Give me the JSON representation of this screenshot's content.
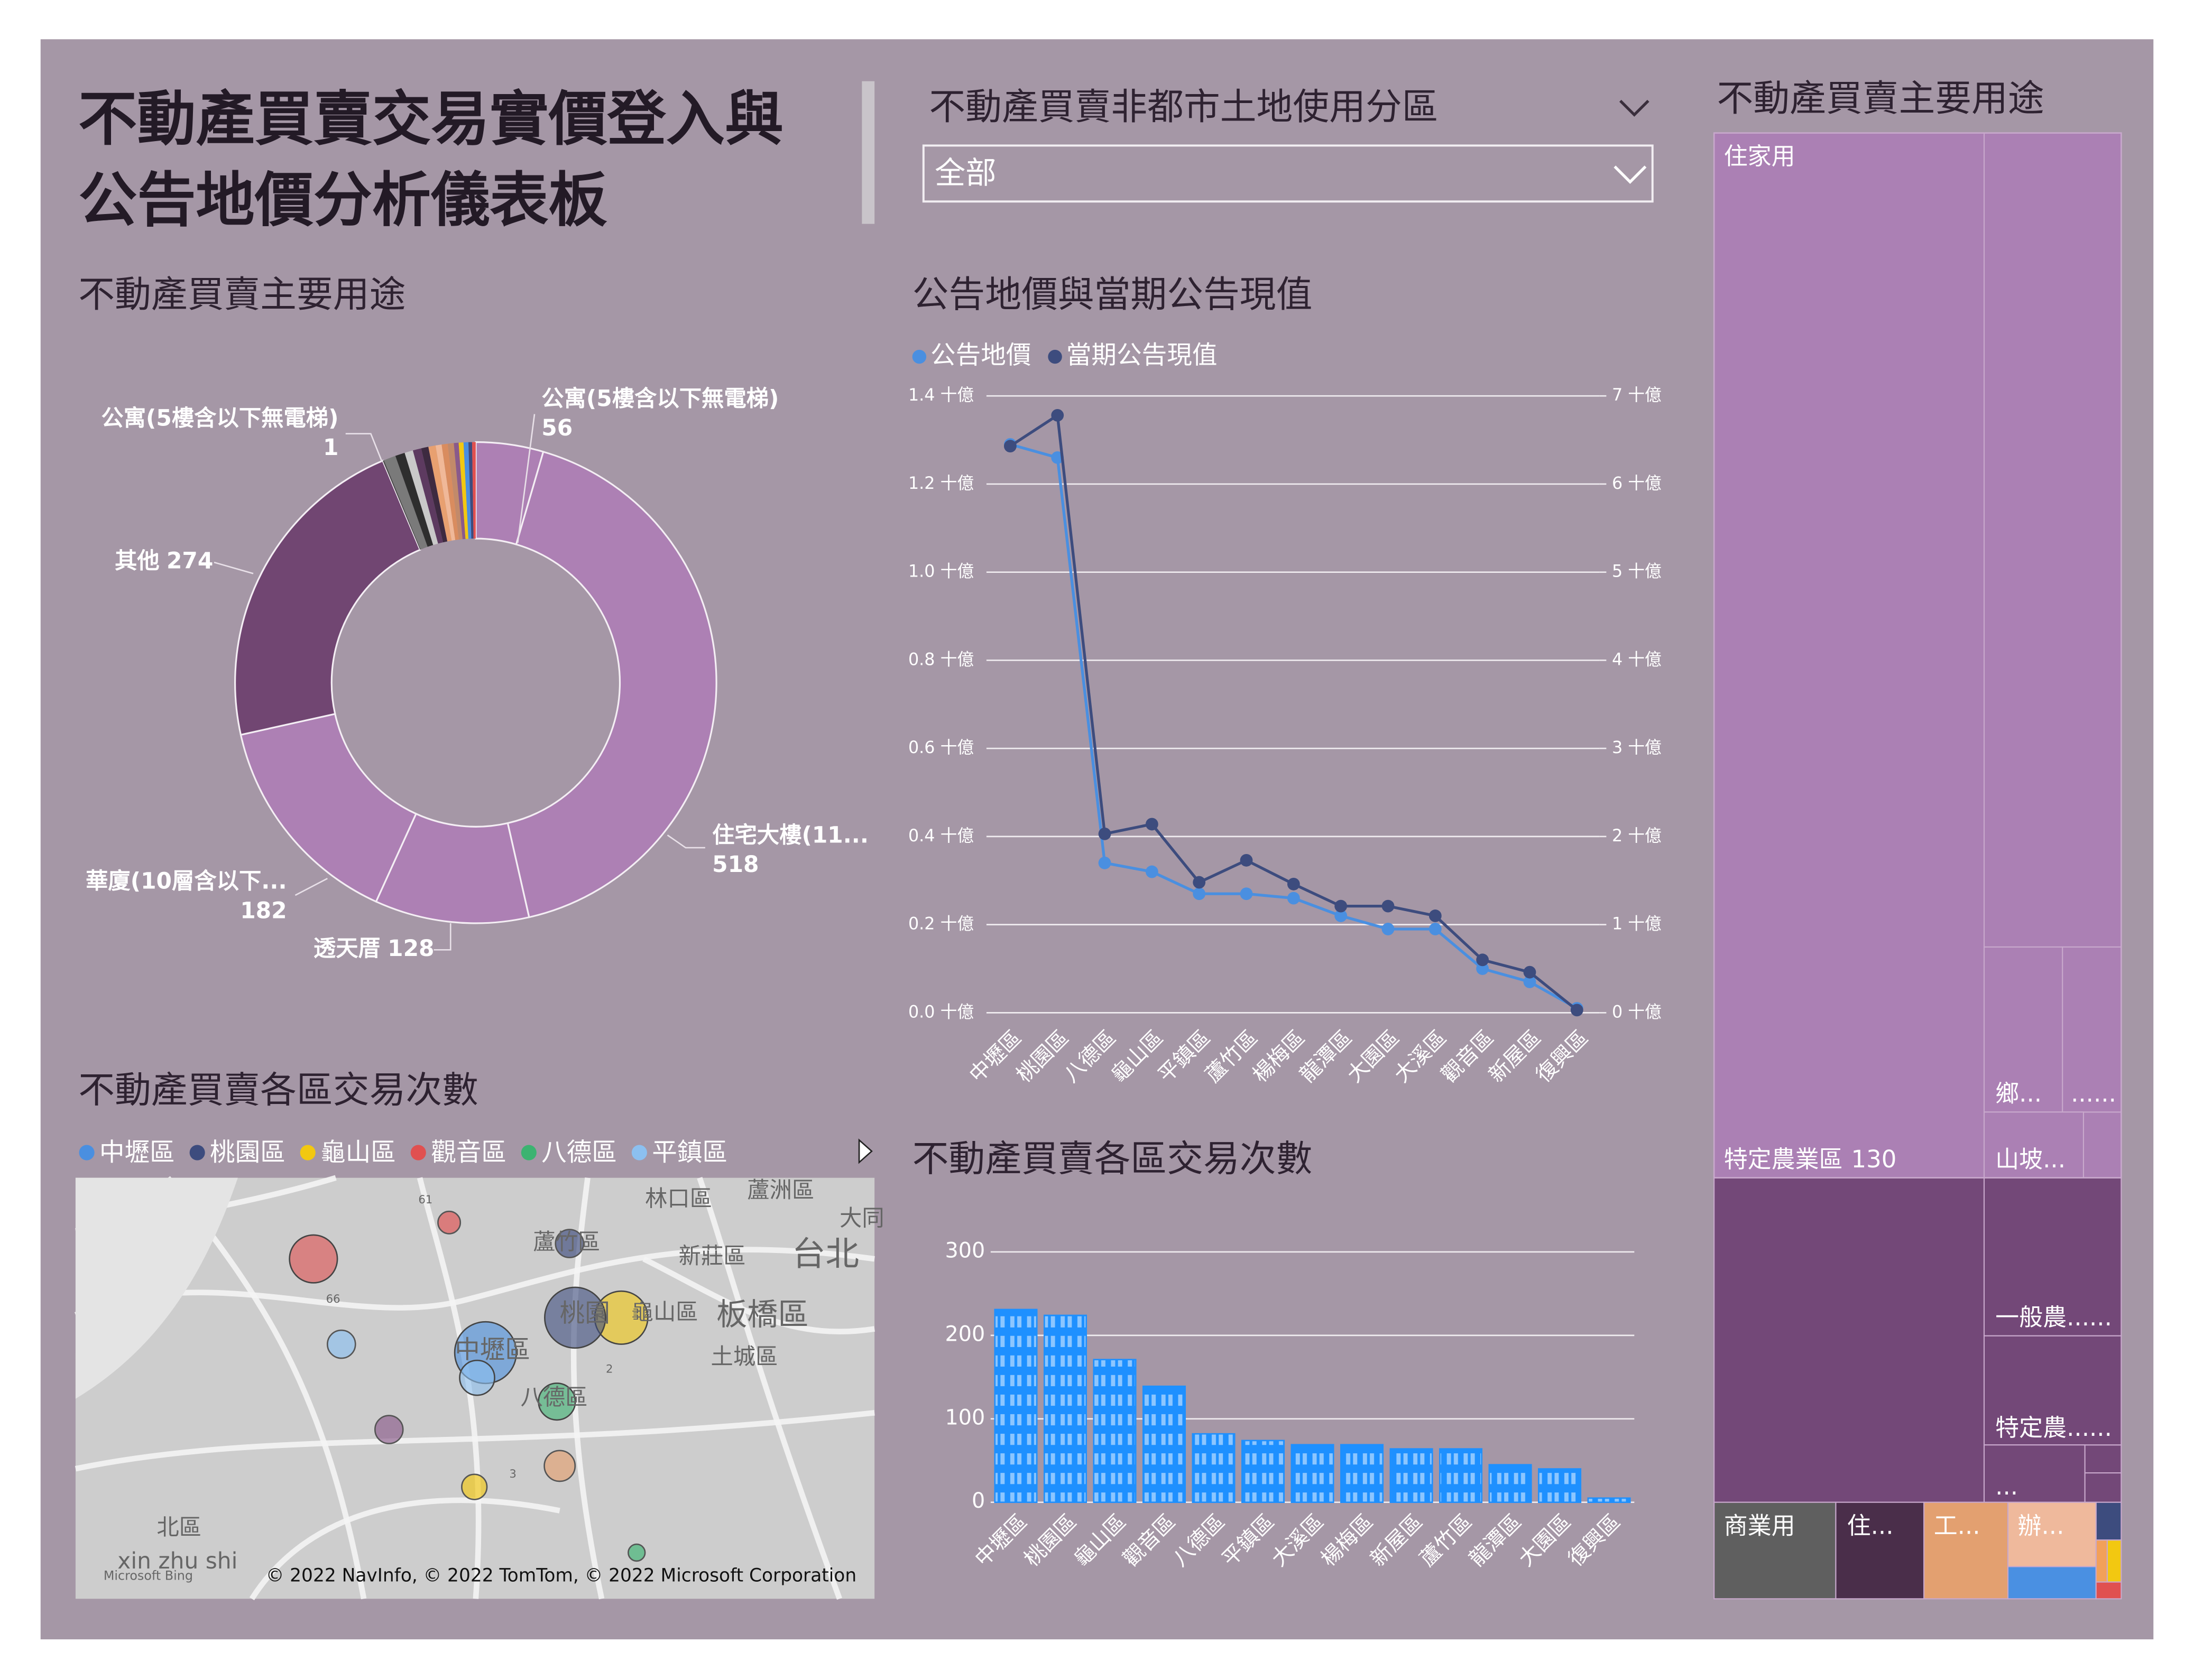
{
  "header": {
    "title_lines": [
      "不動產買賣交易實價登入與",
      "公告地價分析儀表板"
    ]
  },
  "filter": {
    "label": "不動產買賣非都市土地使用分區",
    "value": "全部"
  },
  "chart_data": [
    {
      "type": "donut",
      "title": "不動產買賣主要用途",
      "categories": [
        "公寓(5樓含以下無電梯)",
        "住宅大樓(11...",
        "透天厝",
        "華廈(10層含以下...",
        "其他",
        "公寓(5樓含以下無電梯)",
        null,
        null,
        null,
        null,
        null,
        null,
        null,
        null,
        null,
        null,
        null,
        null,
        null,
        null
      ],
      "values": [
        56,
        518,
        128,
        182,
        274,
        1,
        10,
        8,
        7,
        7,
        6,
        6,
        5,
        5,
        5,
        4,
        4,
        4,
        3,
        3
      ],
      "colors": [
        "#ad80b4",
        "#ad80b4",
        "#ad80b4",
        "#ad80b4",
        "#714672",
        "#4a4a4a",
        "#7a7a7a",
        "#2e2e2e",
        "#c9c9c9",
        "#5d3a60",
        "#3d2a40",
        "#e8a070",
        "#f0b898",
        "#d98c5f",
        "#c28a6a",
        "#8a5a8a",
        "#f2c811",
        "#4a8fe0",
        "#3d4c7e",
        "#e05050"
      ]
    },
    {
      "type": "line",
      "title": "公告地價與當期公告現值",
      "categories": [
        "中壢區",
        "桃園區",
        "八德區",
        "龜山區",
        "平鎮區",
        "蘆竹區",
        "楊梅區",
        "龍潭區",
        "大園區",
        "大溪區",
        "觀音區",
        "新屋區",
        "復興區"
      ],
      "series": [
        {
          "name": "公告地價",
          "color": "#4a8fe0",
          "values": [
            1.29,
            1.26,
            0.34,
            0.32,
            0.27,
            0.27,
            0.26,
            0.22,
            0.19,
            0.19,
            0.1,
            0.07,
            0.01
          ]
        },
        {
          "name": "當期公告現值",
          "color": "#3d4c7e",
          "axis": "y2",
          "values": [
            6.43,
            6.78,
            2.03,
            2.14,
            1.48,
            1.73,
            1.46,
            1.21,
            1.21,
            1.1,
            0.6,
            0.46,
            0.03
          ]
        }
      ],
      "ylim": [
        0,
        1.4
      ],
      "yticks": [
        {
          "value": 0,
          "label": "0.0 十億"
        },
        {
          "value": 0.2,
          "label": "0.2 十億"
        },
        {
          "value": 0.4,
          "label": "0.4 十億"
        },
        {
          "value": 0.6,
          "label": "0.6 十億"
        },
        {
          "value": 0.8,
          "label": "0.8 十億"
        },
        {
          "value": 1.0,
          "label": "1.0 十億"
        },
        {
          "value": 1.2,
          "label": "1.2 十億"
        },
        {
          "value": 1.4,
          "label": "1.4 十億"
        }
      ],
      "y2lim": [
        0,
        7
      ],
      "y2ticks": [
        {
          "value": 0,
          "label": "0 十億"
        },
        {
          "value": 1,
          "label": "1 十億"
        },
        {
          "value": 2,
          "label": "2 十億"
        },
        {
          "value": 3,
          "label": "3 十億"
        },
        {
          "value": 4,
          "label": "4 十億"
        },
        {
          "value": 5,
          "label": "5 十億"
        },
        {
          "value": 6,
          "label": "6 十億"
        },
        {
          "value": 7,
          "label": "7 十億"
        }
      ],
      "grid": true
    },
    {
      "type": "map",
      "title": "不動產買賣各區交易次數",
      "series": [
        {
          "name": "中壢區",
          "color": "#4a8fe0",
          "value": 231
        },
        {
          "name": "桃園區",
          "color": "#3d4c7e",
          "value": 224
        },
        {
          "name": "龜山區",
          "color": "#f2c811",
          "value": 171
        },
        {
          "name": "觀音區",
          "color": "#e05050",
          "value": 139
        },
        {
          "name": "八德區",
          "color": "#3cb371",
          "value": 82
        },
        {
          "name": "平鎮區",
          "color": "#8cc0f0",
          "value": 74
        }
      ],
      "place_labels": [
        "林口區",
        "蘆洲區",
        "大同",
        "新莊區",
        "台北",
        "板橋區",
        "土城區",
        "蘆竹區",
        "桃園",
        "龜山區",
        "中壢區",
        "八德區",
        "北區",
        "xin zhu shi",
        "Microsoft Bing",
        "61",
        "66",
        "3",
        "2"
      ],
      "attribution": "© 2022 NavInfo, © 2022 TomTom, © 2022 Microsoft Corporation"
    },
    {
      "type": "bar",
      "title": "不動產買賣各區交易次數",
      "categories": [
        "中壢區",
        "桃園區",
        "龜山區",
        "觀音區",
        "八德區",
        "平鎮區",
        "大溪區",
        "楊梅區",
        "新屋區",
        "蘆竹區",
        "龍潭區",
        "大園區",
        "復興區"
      ],
      "values": [
        231,
        224,
        171,
        139,
        82,
        74,
        69,
        69,
        64,
        64,
        45,
        40,
        5
      ],
      "color": "#1e90ff",
      "ylim": [
        0,
        300
      ],
      "yticks": [
        0,
        100,
        200,
        300
      ],
      "grid": true
    },
    {
      "type": "treemap",
      "title": "不動產買賣主要用途",
      "items": [
        {
          "label": "住家用"
        },
        {
          "label": "特定農業區",
          "value": 130
        },
        {
          "label": "鄉..."
        },
        {
          "label": "......"
        },
        {
          "label": "山坡..."
        },
        {
          "label": "一般農......"
        },
        {
          "label": "特定農......"
        },
        {
          "label": "..."
        },
        {
          "label": "商業用"
        },
        {
          "label": "住..."
        },
        {
          "label": "工..."
        },
        {
          "label": "辦..."
        }
      ]
    }
  ]
}
